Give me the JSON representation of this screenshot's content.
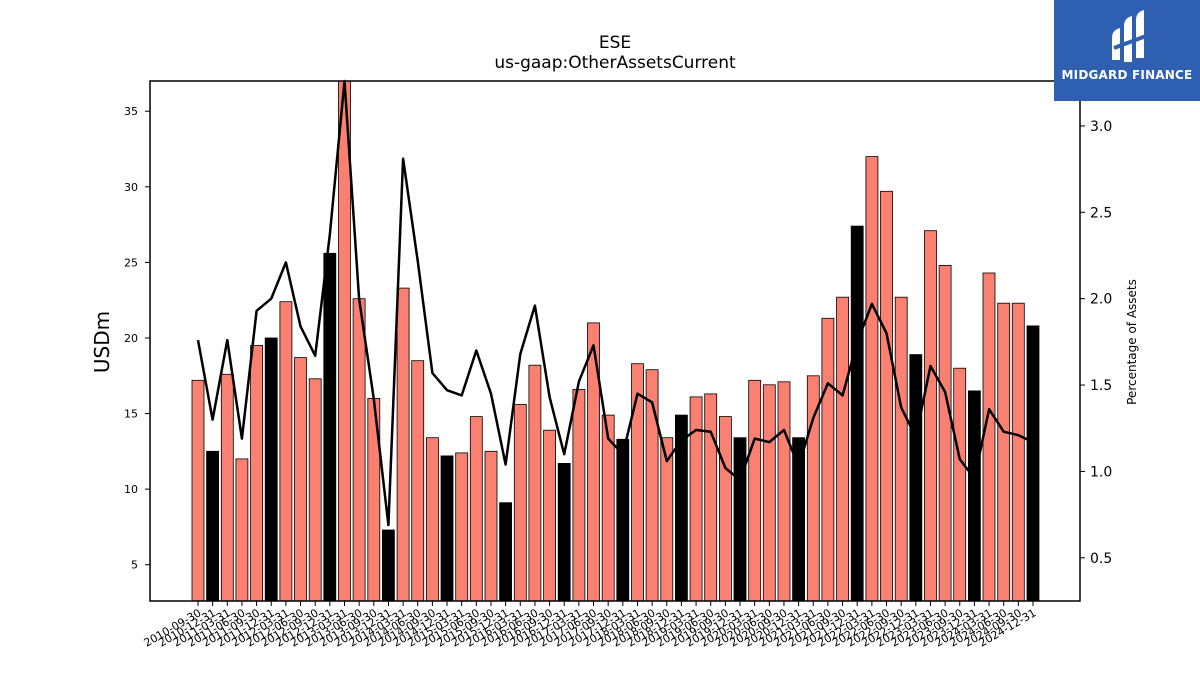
{
  "chart_data": {
    "type": "bar",
    "title": "ESE",
    "subtitle": "us-gaap:OtherAssetsCurrent",
    "ylabel": "USDm",
    "y2label": "Percentage of Assets",
    "ylim": [
      2.6,
      37
    ],
    "y2lim": [
      0.25,
      3.26
    ],
    "yticks": [
      5,
      10,
      15,
      20,
      25,
      30,
      35
    ],
    "y2ticks": [
      0.5,
      1.0,
      1.5,
      2.0,
      2.5,
      3.0
    ],
    "bar_colors": {
      "annual": "#000000",
      "quarterly": "#fa8072"
    },
    "line_color": "#000000",
    "categories": [
      "2010-09-30",
      "2010-12-31",
      "2011-03-31",
      "2011-06-30",
      "2011-09-30",
      "2011-12-31",
      "2012-03-31",
      "2012-06-30",
      "2012-09-30",
      "2012-12-31",
      "2013-03-31",
      "2013-06-30",
      "2013-09-30",
      "2013-12-31",
      "2014-03-31",
      "2014-06-30",
      "2014-09-30",
      "2014-12-31",
      "2015-03-31",
      "2015-06-30",
      "2015-09-30",
      "2015-12-31",
      "2016-03-31",
      "2016-06-30",
      "2016-09-30",
      "2016-12-31",
      "2017-03-31",
      "2017-06-30",
      "2017-09-30",
      "2017-12-31",
      "2018-03-31",
      "2018-06-30",
      "2018-09-30",
      "2018-12-31",
      "2019-03-31",
      "2019-06-30",
      "2019-09-30",
      "2019-12-31",
      "2020-03-31",
      "2020-06-30",
      "2020-09-30",
      "2020-12-31",
      "2021-03-31",
      "2021-06-30",
      "2021-09-30",
      "2021-12-31",
      "2022-03-31",
      "2022-06-30",
      "2022-09-30",
      "2022-12-31",
      "2023-03-31",
      "2023-06-30",
      "2023-09-30",
      "2023-12-31",
      "2024-03-31",
      "2024-06-30",
      "2024-09-30",
      "2024-12-31"
    ],
    "series": [
      {
        "type": "bar",
        "values": [
          17.2,
          12.5,
          17.6,
          12.0,
          19.5,
          20.0,
          22.4,
          18.7,
          17.3,
          25.6,
          37.0,
          22.6,
          16.0,
          7.3,
          23.3,
          18.5,
          13.4,
          12.2,
          12.4,
          14.8,
          12.5,
          9.1,
          15.6,
          18.2,
          13.9,
          11.7,
          16.6,
          21.0,
          14.9,
          13.3,
          18.3,
          17.9,
          13.4,
          14.9,
          16.1,
          16.3,
          14.8,
          13.4,
          17.2,
          16.9,
          17.1,
          13.4,
          17.5,
          21.3,
          22.7,
          27.4,
          32.0,
          29.7,
          22.7,
          18.9,
          27.1,
          24.8,
          18.0,
          16.5,
          24.3,
          22.3,
          22.3,
          20.8
        ],
        "annual": [
          false,
          true,
          false,
          false,
          false,
          true,
          false,
          false,
          false,
          true,
          false,
          false,
          false,
          true,
          false,
          false,
          false,
          true,
          false,
          false,
          false,
          true,
          false,
          false,
          false,
          true,
          false,
          false,
          false,
          true,
          false,
          false,
          false,
          true,
          false,
          false,
          false,
          true,
          false,
          false,
          false,
          true,
          false,
          false,
          false,
          true,
          false,
          false,
          false,
          true,
          false,
          false,
          false,
          true,
          false,
          false,
          false,
          true
        ]
      },
      {
        "type": "line",
        "axis": "right",
        "values": [
          1.76,
          1.3,
          1.76,
          1.19,
          1.93,
          2.0,
          2.21,
          1.84,
          1.67,
          2.37,
          3.35,
          2.0,
          1.42,
          0.69,
          2.81,
          2.22,
          1.57,
          1.47,
          1.44,
          1.7,
          1.45,
          1.04,
          1.68,
          1.96,
          1.43,
          1.1,
          1.52,
          1.73,
          1.19,
          1.1,
          1.45,
          1.4,
          1.06,
          1.18,
          1.24,
          1.23,
          1.02,
          0.95,
          1.19,
          1.17,
          1.24,
          1.03,
          1.31,
          1.51,
          1.44,
          1.75,
          1.97,
          1.8,
          1.37,
          1.2,
          1.61,
          1.46,
          1.07,
          0.96,
          1.36,
          1.23,
          1.21,
          1.17
        ]
      }
    ]
  },
  "logo": {
    "text": "MIDGARD FINANCE"
  }
}
